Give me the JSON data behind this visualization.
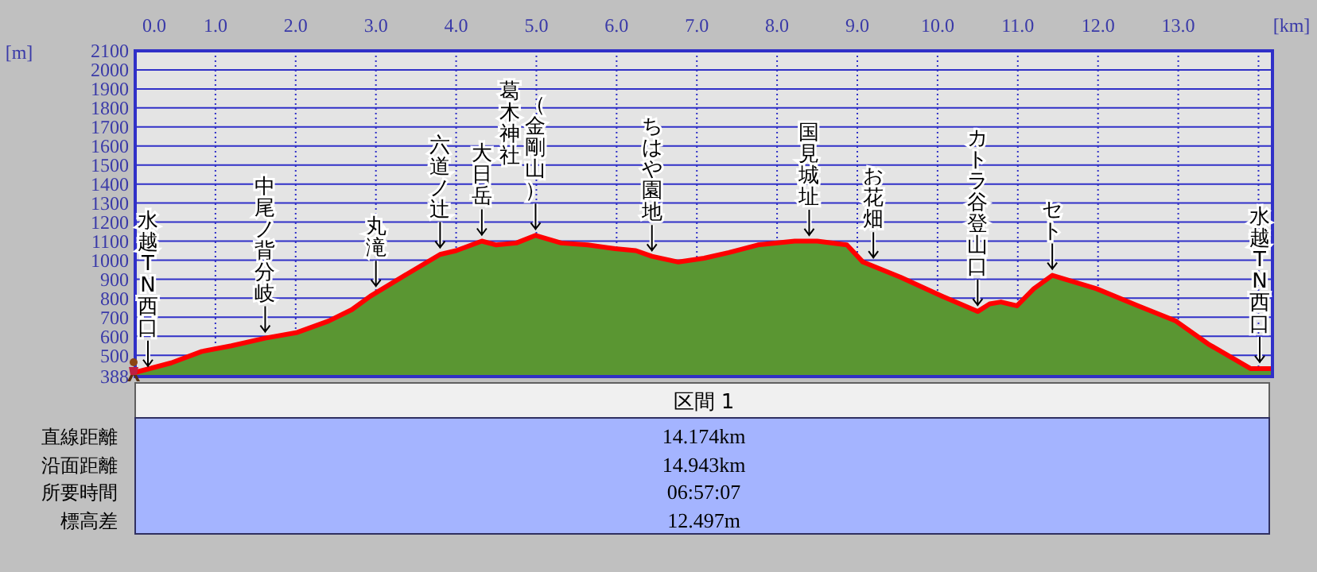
{
  "chart_data": {
    "type": "area",
    "xlabel": "[km]",
    "ylabel": "[m]",
    "x": [
      0,
      0.45,
      0.83,
      1.2,
      1.62,
      2.02,
      2.41,
      2.7,
      2.93,
      3.4,
      3.8,
      4.0,
      4.32,
      4.5,
      4.75,
      4.99,
      5.31,
      5.64,
      5.98,
      6.24,
      6.44,
      6.77,
      7.09,
      7.4,
      7.76,
      8.22,
      8.5,
      8.87,
      9.07,
      9.54,
      10.06,
      10.5,
      10.65,
      10.79,
      10.99,
      11.2,
      11.43,
      11.98,
      12.5,
      12.97,
      13.37,
      13.9,
      14.16
    ],
    "series": [
      {
        "color": "#5a9632",
        "values": [
          410,
          460,
          520,
          550,
          590,
          620,
          680,
          740,
          810,
          930,
          1030,
          1050,
          1100,
          1080,
          1090,
          1130,
          1090,
          1080,
          1060,
          1050,
          1020,
          990,
          1010,
          1040,
          1080,
          1100,
          1100,
          1080,
          990,
          910,
          810,
          730,
          770,
          780,
          760,
          850,
          920,
          850,
          760,
          680,
          560,
          430,
          430
        ]
      },
      {
        "type": "line",
        "color": "#ff0000",
        "values": [
          410,
          460,
          520,
          550,
          590,
          620,
          680,
          740,
          810,
          930,
          1030,
          1050,
          1100,
          1080,
          1090,
          1130,
          1090,
          1080,
          1060,
          1050,
          1020,
          990,
          1010,
          1040,
          1080,
          1100,
          1100,
          1080,
          990,
          910,
          810,
          730,
          770,
          780,
          760,
          850,
          920,
          850,
          760,
          680,
          560,
          430,
          430
        ]
      }
    ],
    "xlim": [
      0,
      14.174
    ],
    "xticks": [
      {
        "value": 0,
        "label": "0.0"
      },
      {
        "value": 1,
        "label": "1.0"
      },
      {
        "value": 2,
        "label": "2.0"
      },
      {
        "value": 3,
        "label": "3.0"
      },
      {
        "value": 4,
        "label": "4.0"
      },
      {
        "value": 5,
        "label": "5.0"
      },
      {
        "value": 6,
        "label": "6.0"
      },
      {
        "value": 7,
        "label": "7.0"
      },
      {
        "value": 8,
        "label": "8.0"
      },
      {
        "value": 9,
        "label": "9.0"
      },
      {
        "value": 10,
        "label": "10.0"
      },
      {
        "value": 11,
        "label": "11.0"
      },
      {
        "value": 12,
        "label": "12.0"
      },
      {
        "value": 13,
        "label": "13.0"
      },
      {
        "value": 14,
        "label": null
      }
    ],
    "ylim": [
      388,
      2100
    ],
    "yticks": [
      388,
      500,
      600,
      700,
      800,
      900,
      1000,
      1100,
      1200,
      1300,
      1400,
      1500,
      1600,
      1700,
      1800,
      1900,
      2000,
      2100
    ],
    "grid": true,
    "annotations": [
      {
        "text": "水越TN西口",
        "x": 0,
        "y": 410
      },
      {
        "text": "中尾ノ背分岐",
        "x": 1.62,
        "y": 590
      },
      {
        "text": "丸滝",
        "x": 3.0,
        "y": 830
      },
      {
        "text": "六道ノ辻",
        "x": 3.8,
        "y": 1033
      },
      {
        "text": "大日岳",
        "x": 4.32,
        "y": 1100
      },
      "葛木神社",
      {
        "text": "（金剛山）",
        "x": 4.99,
        "y": 1130
      },
      {
        "text": "ちはや園地",
        "x": 6.44,
        "y": 1017
      },
      {
        "text": "国見城址",
        "x": 8.4,
        "y": 1098
      },
      {
        "text": "お花畑",
        "x": 9.2,
        "y": 980
      },
      {
        "text": "カトラ谷登山口",
        "x": 10.5,
        "y": 730
      },
      {
        "text": "セト",
        "x": 11.43,
        "y": 920
      },
      {
        "text": "水越TN西口",
        "x": 14.16,
        "y": 430
      },
      "区間 1",
      "直線距離",
      "14.174km",
      "沿面距離",
      "14.943km",
      "所要時間",
      "06:57:07",
      "標高差",
      "12.497m"
    ]
  }
}
